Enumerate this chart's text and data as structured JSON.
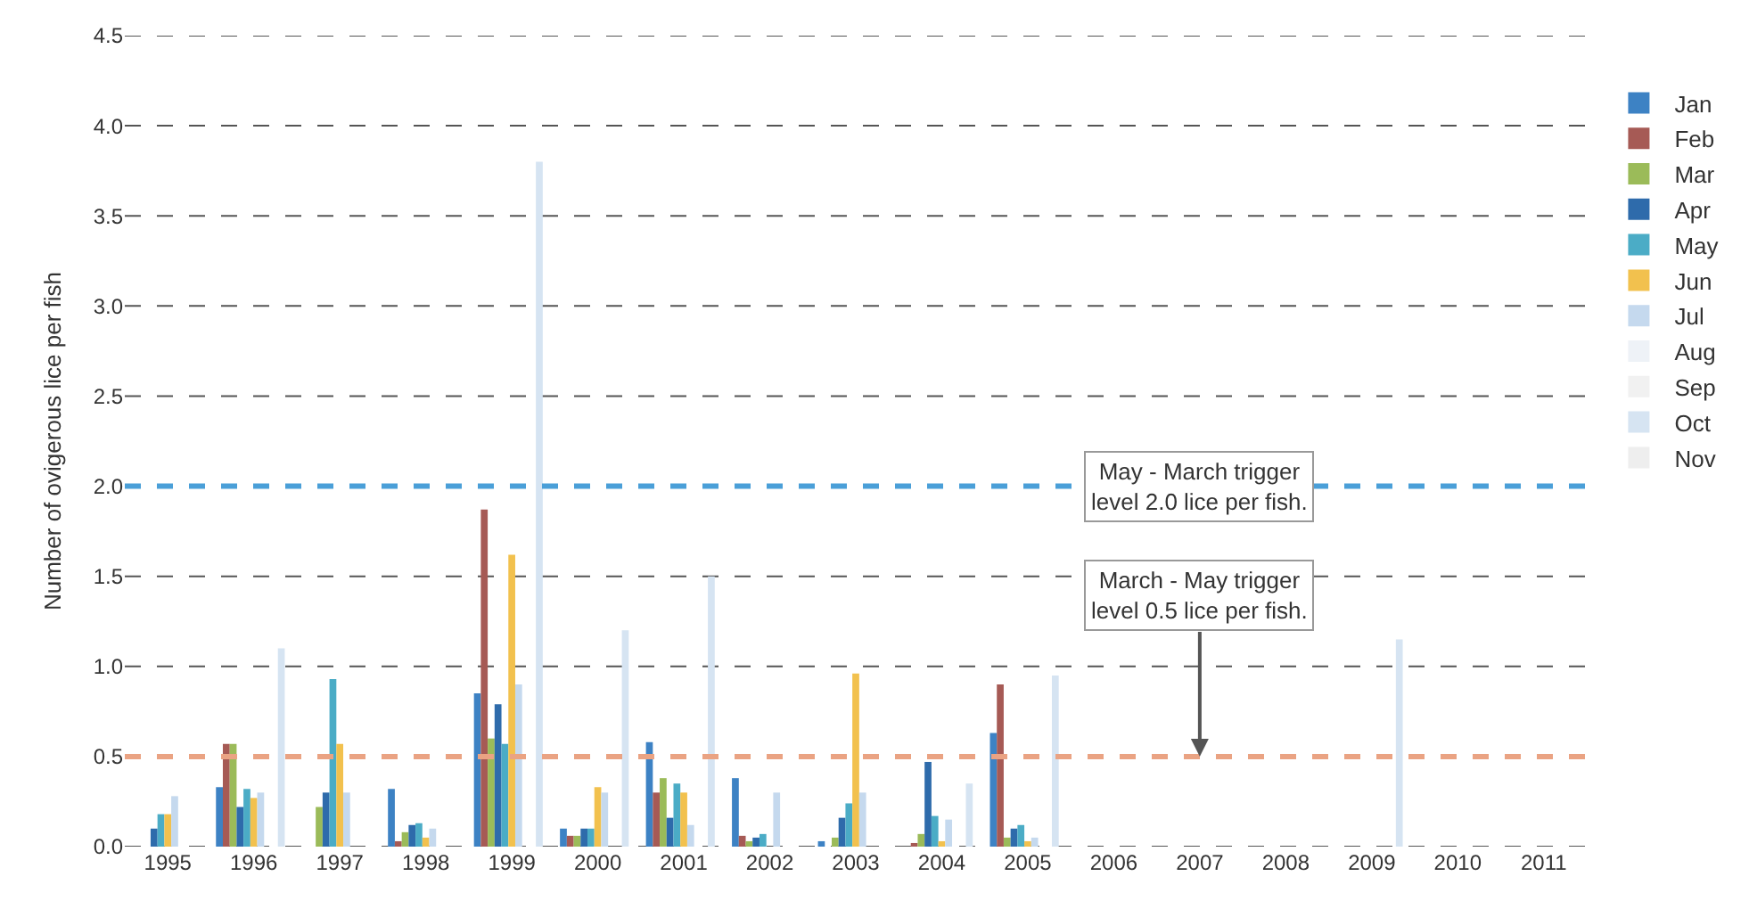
{
  "chart_data": {
    "type": "bar",
    "ylabel": "Number of ovigerous lice per fish",
    "categories": [
      "1995",
      "1996",
      "1997",
      "1998",
      "1999",
      "2000",
      "2001",
      "2002",
      "2003",
      "2004",
      "2005",
      "2006",
      "2007",
      "2008",
      "2009",
      "2010",
      "2011"
    ],
    "series": [
      {
        "name": "Jan",
        "color": "#3d82c4",
        "values": [
          0,
          0.33,
          0,
          0.32,
          0.85,
          0.1,
          0.58,
          0.38,
          0.03,
          0,
          0.63,
          0,
          0,
          0,
          0,
          0,
          0
        ]
      },
      {
        "name": "Feb",
        "color": "#a65a55",
        "values": [
          0,
          0.57,
          0,
          0.03,
          1.87,
          0.06,
          0.3,
          0.06,
          0,
          0.02,
          0.9,
          0,
          0,
          0,
          0,
          0,
          0
        ]
      },
      {
        "name": "Mar",
        "color": "#9bbb59",
        "values": [
          0,
          0.57,
          0.22,
          0.08,
          0.6,
          0.06,
          0.38,
          0.03,
          0.05,
          0.07,
          0.05,
          0,
          0,
          0,
          0,
          0,
          0
        ]
      },
      {
        "name": "Apr",
        "color": "#2e6bab",
        "values": [
          0.1,
          0.22,
          0.3,
          0.12,
          0.79,
          0.1,
          0.16,
          0.05,
          0.16,
          0.47,
          0.1,
          0,
          0,
          0,
          0,
          0,
          0
        ]
      },
      {
        "name": "May",
        "color": "#4bacc6",
        "values": [
          0.18,
          0.32,
          0.93,
          0.13,
          0.57,
          0.1,
          0.35,
          0.07,
          0.24,
          0.17,
          0.12,
          0,
          0,
          0,
          0,
          0,
          0
        ]
      },
      {
        "name": "Jun",
        "color": "#f2c14e",
        "values": [
          0.18,
          0.27,
          0.57,
          0.05,
          1.62,
          0.33,
          0.3,
          0,
          0.96,
          0.03,
          0.03,
          0,
          0,
          0,
          0,
          0,
          0
        ]
      },
      {
        "name": "Jul",
        "color": "#c5d9ee",
        "values": [
          0.28,
          0.3,
          0.3,
          0.1,
          0.9,
          0.3,
          0.12,
          0.3,
          0.3,
          0.15,
          0.05,
          0,
          0,
          0,
          0,
          0,
          0
        ]
      },
      {
        "name": "Aug",
        "color": "#eef2f7",
        "values": [
          0,
          0,
          0,
          0,
          0,
          0,
          0,
          0,
          0,
          0,
          0,
          0,
          0,
          0,
          0,
          0,
          0
        ]
      },
      {
        "name": "Sep",
        "color": "#f1f1f1",
        "values": [
          0,
          0,
          0,
          0,
          0,
          0,
          0,
          0,
          0,
          0,
          0,
          0,
          0,
          0,
          0,
          0,
          0
        ]
      },
      {
        "name": "Oct",
        "color": "#d6e4f2",
        "values": [
          0,
          1.1,
          0,
          0,
          3.8,
          1.2,
          1.5,
          0,
          0,
          0.35,
          0.95,
          0,
          0,
          0,
          1.15,
          0,
          0
        ]
      },
      {
        "name": "Nov",
        "color": "#eeeeee",
        "values": [
          0,
          0,
          0,
          0,
          0,
          0,
          0,
          0,
          0,
          0,
          0,
          0,
          0,
          0,
          0,
          0,
          0
        ]
      }
    ],
    "ylim": [
      0,
      4.5
    ],
    "yticks": [
      {
        "value": 0,
        "label": "0.0"
      },
      {
        "value": 0.5,
        "label": "0.5"
      },
      {
        "value": 1,
        "label": "1.0"
      },
      {
        "value": 1.5,
        "label": "1.5"
      },
      {
        "value": 2,
        "label": "2.0"
      },
      {
        "value": 2.5,
        "label": "2.5"
      },
      {
        "value": 3,
        "label": "3.0"
      },
      {
        "value": 3.5,
        "label": "3.5"
      },
      {
        "value": 4,
        "label": "4.0"
      },
      {
        "value": 4.5,
        "label": "4.5"
      }
    ],
    "grid": "y",
    "legend": "right",
    "ref_lines": [
      {
        "axis": "y",
        "value": 2,
        "label": "May - March trigger level 2.0 lice per fish.",
        "color": "#4a9fd8",
        "line_style": "dashed"
      },
      {
        "axis": "y",
        "value": 0.5,
        "label": "March - May trigger level 0.5 lice per fish.",
        "color": "#eaa383",
        "line_style": "dashed"
      }
    ]
  }
}
